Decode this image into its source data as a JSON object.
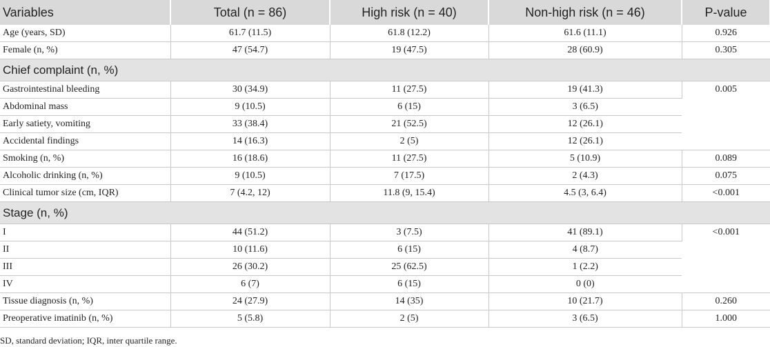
{
  "table": {
    "header": [
      "Variables",
      "Total (n = 86)",
      "High risk (n = 40)",
      "Non-high risk (n = 46)",
      "P-value"
    ],
    "rows": [
      [
        "Age (years, SD)",
        "61.7 (11.5)",
        "61.8 (12.2)",
        "61.6 (11.1)",
        "0.926"
      ],
      [
        "Female (n, %)",
        "47 (54.7)",
        "19 (47.5)",
        "28 (60.9)",
        "0.305"
      ],
      [
        "Chief complaint (n, %)"
      ],
      [
        "Gastrointestinal bleeding",
        "30 (34.9)",
        "11 (27.5)",
        "19 (41.3)",
        "0.005"
      ],
      [
        "Abdominal mass",
        "9 (10.5)",
        "6 (15)",
        "3 (6.5)"
      ],
      [
        "Early satiety, vomiting",
        "33 (38.4)",
        "21 (52.5)",
        "12 (26.1)"
      ],
      [
        "Accidental findings",
        "14 (16.3)",
        "2 (5)",
        "12 (26.1)"
      ],
      [
        "Smoking (n, %)",
        "16 (18.6)",
        "11 (27.5)",
        "5 (10.9)",
        "0.089"
      ],
      [
        "Alcoholic drinking (n, %)",
        "9 (10.5)",
        "7 (17.5)",
        "2 (4.3)",
        "0.075"
      ],
      [
        "Clinical tumor size (cm, IQR)",
        "7 (4.2, 12)",
        "11.8 (9, 15.4)",
        "4.5 (3, 6.4)",
        "<0.001"
      ],
      [
        "Stage (n, %)"
      ],
      [
        "I",
        "44 (51.2)",
        "3 (7.5)",
        "41 (89.1)",
        "<0.001"
      ],
      [
        "II",
        "10 (11.6)",
        "6 (15)",
        "4 (8.7)"
      ],
      [
        "III",
        "26 (30.2)",
        "25 (62.5)",
        "1 (2.2)"
      ],
      [
        "IV",
        "6 (7)",
        "6 (15)",
        "0 (0)"
      ],
      [
        "Tissue diagnosis (n, %)",
        "24 (27.9)",
        "14 (35)",
        "10 (21.7)",
        "0.260"
      ],
      [
        "Preoperative imatinib (n, %)",
        "5 (5.8)",
        "2 (5)",
        "3 (6.5)",
        "1.000"
      ]
    ]
  },
  "footnote": "SD, standard deviation; IQR, inter quartile range."
}
